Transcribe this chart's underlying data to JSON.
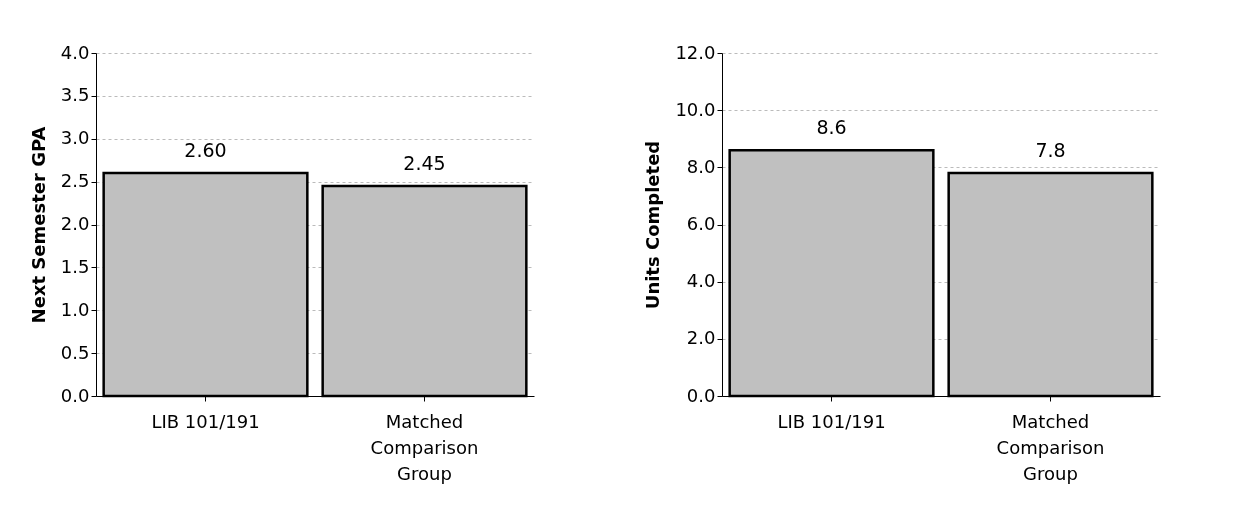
{
  "chart_data": [
    {
      "type": "bar",
      "categories": [
        "LIB 101/191",
        "Matched Comparison Group"
      ],
      "values": [
        2.6,
        2.45
      ],
      "value_labels": [
        "2.60",
        "2.45"
      ],
      "color": "#c0c0c0",
      "ylabel": "Next Semester GPA",
      "ylim": [
        0,
        4
      ],
      "yticks": [
        {
          "value": 0,
          "label": "0.0"
        },
        {
          "value": 0.5,
          "label": "0.5"
        },
        {
          "value": 1,
          "label": "1.0"
        },
        {
          "value": 1.5,
          "label": "1.5"
        },
        {
          "value": 2,
          "label": "2.0"
        },
        {
          "value": 2.5,
          "label": "2.5"
        },
        {
          "value": 3,
          "label": "3.0"
        },
        {
          "value": 3.5,
          "label": "3.5"
        },
        {
          "value": 4,
          "label": "4.0"
        }
      ],
      "grid": "y"
    },
    {
      "type": "bar",
      "categories": [
        "LIB 101/191",
        "Matched Comparison Group"
      ],
      "values": [
        8.6,
        7.8
      ],
      "value_labels": [
        "8.6",
        "7.8"
      ],
      "color": "#c0c0c0",
      "ylabel": "Units Completed",
      "ylim": [
        0,
        12
      ],
      "yticks": [
        {
          "value": 0,
          "label": "0.0"
        },
        {
          "value": 2,
          "label": "2.0"
        },
        {
          "value": 4,
          "label": "4.0"
        },
        {
          "value": 6,
          "label": "6.0"
        },
        {
          "value": 8,
          "label": "8.0"
        },
        {
          "value": 10,
          "label": "10.0"
        },
        {
          "value": 12,
          "label": "12.0"
        }
      ],
      "grid": "y"
    }
  ]
}
